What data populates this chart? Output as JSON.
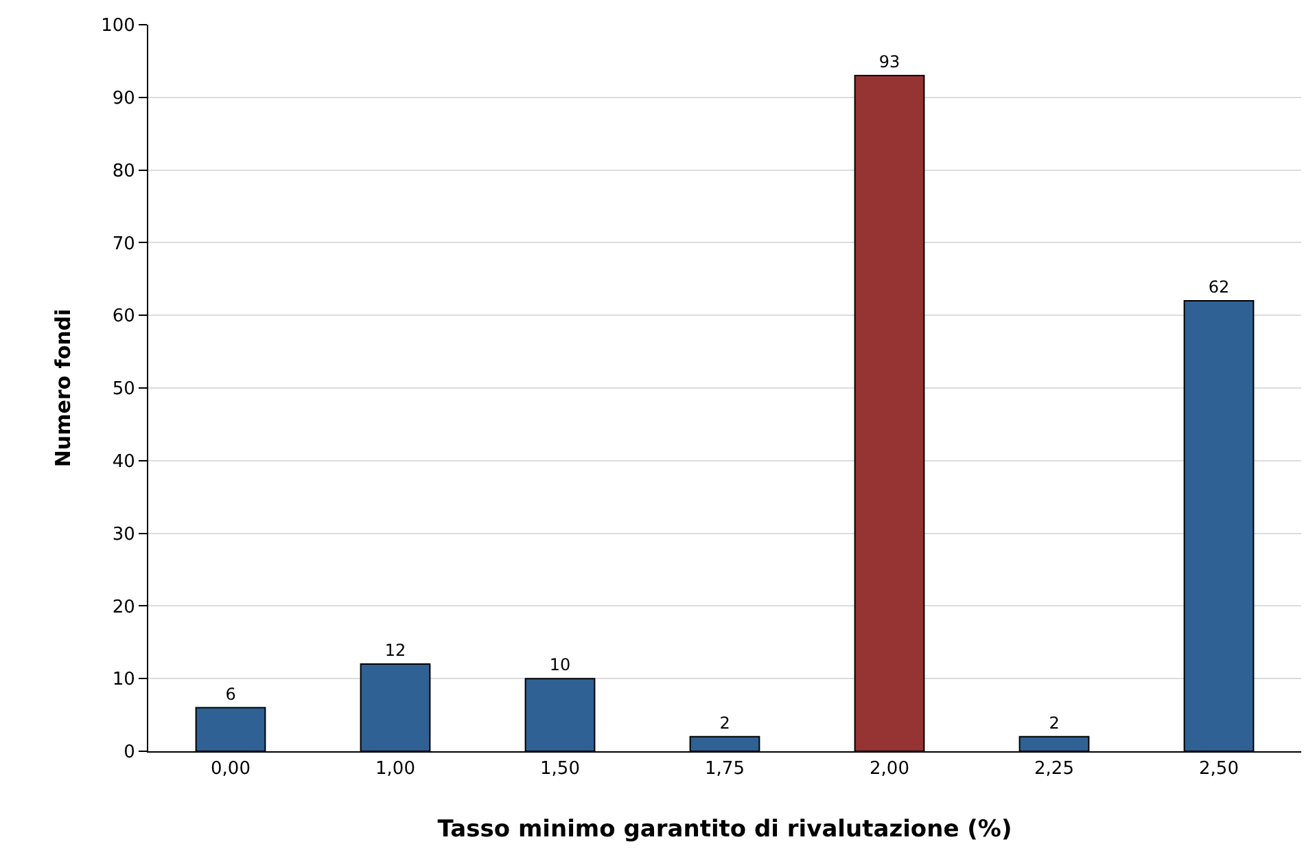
{
  "chart_data": {
    "type": "bar",
    "xlabel": "Tasso minimo garantito di rivalutazione (%)",
    "ylabel": "Numero fondi",
    "categories": [
      "0,00",
      "1,00",
      "1,50",
      "1,75",
      "2,00",
      "2,25",
      "2,50"
    ],
    "values": [
      6,
      12,
      10,
      2,
      93,
      2,
      62
    ],
    "colors": [
      "#2f6195",
      "#2f6195",
      "#2f6195",
      "#2f6195",
      "#963333",
      "#2f6195",
      "#2f6195"
    ],
    "ylim": [
      0,
      100
    ],
    "yticks": [
      0,
      10,
      20,
      30,
      40,
      50,
      60,
      70,
      80,
      90,
      100
    ],
    "grid": "y",
    "data_labels": true
  }
}
